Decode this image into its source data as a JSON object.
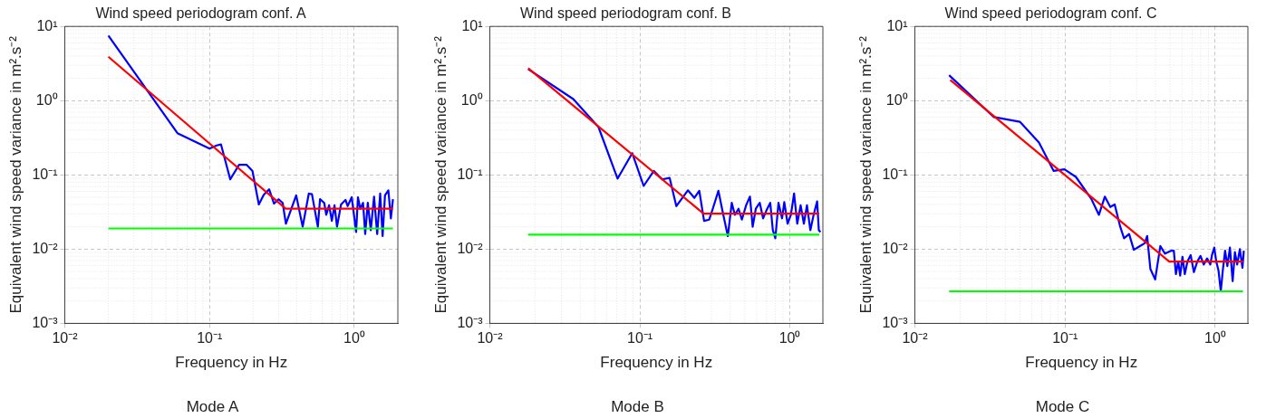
{
  "chart_data": [
    {
      "type": "line",
      "title": "Wind speed periodogram conf. A",
      "xlabel": "Frequency in Hz",
      "ylabel": "Equivalent wind speed variance in m².s⁻²",
      "annotations": [
        "Mode A"
      ],
      "log": "xy",
      "grid": true,
      "marker": "none",
      "xlim": [
        0.01,
        2
      ],
      "ylim": [
        0.001,
        10
      ],
      "xticks": [
        {
          "value": 0.01,
          "label": "10⁻²"
        },
        {
          "value": 0.1,
          "label": "10⁻¹"
        },
        {
          "value": 1,
          "label": "10⁰"
        }
      ],
      "yticks": [
        {
          "value": 0.001,
          "label": "10⁻³"
        },
        {
          "value": 0.01,
          "label": "10⁻²"
        },
        {
          "value": 0.1,
          "label": "10⁻¹"
        },
        {
          "value": 1,
          "label": "10⁰"
        },
        {
          "value": 10,
          "label": "10¹"
        }
      ],
      "series": [
        {
          "color": "#0000ff",
          "x": [
            0.02,
            0.06,
            0.1,
            0.112,
            0.12,
            0.139,
            0.16,
            0.18,
            0.198,
            0.219,
            0.237,
            0.258,
            0.279,
            0.3,
            0.32,
            0.337,
            0.397,
            0.44,
            0.485,
            0.51,
            0.56,
            0.58,
            0.62,
            0.64,
            0.67,
            0.7,
            0.73,
            0.76,
            0.81,
            0.87,
            0.9,
            0.96,
            1.03,
            1.06,
            1.1,
            1.15,
            1.19,
            1.24,
            1.3,
            1.37,
            1.44,
            1.51,
            1.57,
            1.63,
            1.72,
            1.79,
            1.85
          ],
          "values": [
            7.5,
            0.365,
            0.226,
            0.249,
            0.257,
            0.087,
            0.137,
            0.137,
            0.113,
            0.04,
            0.054,
            0.064,
            0.041,
            0.047,
            0.042,
            0.022,
            0.053,
            0.02,
            0.056,
            0.055,
            0.02,
            0.047,
            0.042,
            0.029,
            0.039,
            0.024,
            0.039,
            0.02,
            0.04,
            0.046,
            0.038,
            0.05,
            0.017,
            0.05,
            0.035,
            0.042,
            0.016,
            0.042,
            0.018,
            0.051,
            0.016,
            0.056,
            0.015,
            0.053,
            0.062,
            0.026,
            0.047
          ]
        },
        {
          "color": "#ff0000",
          "x": [
            0.02,
            0.336,
            1.85
          ],
          "values": [
            3.9,
            0.035,
            0.035
          ]
        },
        {
          "color": "#00ff00",
          "x": [
            0.02,
            1.85
          ],
          "values": [
            0.019,
            0.019
          ]
        }
      ]
    },
    {
      "type": "line",
      "title": "Wind speed periodogram conf. B",
      "xlabel": "Frequency in Hz",
      "ylabel": "Equivalent wind speed variance in m².s⁻²",
      "annotations": [
        "Mode B"
      ],
      "log": "xy",
      "grid": true,
      "marker": "none",
      "xlim": [
        0.01,
        1.66
      ],
      "ylim": [
        0.001,
        10
      ],
      "xticks": [
        {
          "value": 0.01,
          "label": "10⁻²"
        },
        {
          "value": 0.1,
          "label": "10⁻¹"
        },
        {
          "value": 1,
          "label": "10⁰"
        }
      ],
      "yticks": [
        {
          "value": 0.001,
          "label": "10⁻³"
        },
        {
          "value": 0.01,
          "label": "10⁻²"
        },
        {
          "value": 0.1,
          "label": "10⁻¹"
        },
        {
          "value": 1,
          "label": "10⁰"
        },
        {
          "value": 10,
          "label": "10¹"
        }
      ],
      "series": [
        {
          "color": "#0000ff",
          "x": [
            0.018,
            0.036,
            0.053,
            0.071,
            0.089,
            0.106,
            0.124,
            0.141,
            0.158,
            0.175,
            0.209,
            0.231,
            0.249,
            0.268,
            0.29,
            0.305,
            0.334,
            0.36,
            0.386,
            0.41,
            0.43,
            0.455,
            0.479,
            0.511,
            0.542,
            0.565,
            0.593,
            0.63,
            0.663,
            0.697,
            0.74,
            0.77,
            0.8,
            0.84,
            0.887,
            0.918,
            0.966,
            1.016,
            1.067,
            1.12,
            1.18,
            1.24,
            1.3,
            1.37,
            1.44,
            1.52,
            1.56,
            1.6
          ],
          "values": [
            2.66,
            1.05,
            0.44,
            0.089,
            0.196,
            0.071,
            0.113,
            0.087,
            0.091,
            0.038,
            0.062,
            0.049,
            0.061,
            0.024,
            0.025,
            0.034,
            0.061,
            0.029,
            0.015,
            0.042,
            0.029,
            0.035,
            0.025,
            0.039,
            0.051,
            0.02,
            0.035,
            0.042,
            0.026,
            0.033,
            0.042,
            0.018,
            0.014,
            0.042,
            0.026,
            0.043,
            0.022,
            0.029,
            0.056,
            0.022,
            0.039,
            0.022,
            0.039,
            0.018,
            0.029,
            0.044,
            0.018,
            0.017
          ]
        },
        {
          "color": "#ff0000",
          "x": [
            0.018,
            0.266,
            1.57
          ],
          "values": [
            2.74,
            0.03,
            0.03
          ]
        },
        {
          "color": "#00ff00",
          "x": [
            0.018,
            1.57
          ],
          "values": [
            0.0157,
            0.0157
          ]
        }
      ]
    },
    {
      "type": "line",
      "title": "Wind speed periodogram conf. C",
      "xlabel": "Frequency in Hz",
      "ylabel": "Equivalent wind speed variance in m².s⁻²",
      "annotations": [
        "Mode C"
      ],
      "log": "xy",
      "grid": true,
      "marker": "none",
      "xlim": [
        0.01,
        1.65
      ],
      "ylim": [
        0.001,
        10
      ],
      "xticks": [
        {
          "value": 0.01,
          "label": "10⁻²"
        },
        {
          "value": 0.1,
          "label": "10⁻¹"
        },
        {
          "value": 1,
          "label": "10⁰"
        }
      ],
      "yticks": [
        {
          "value": 0.001,
          "label": "10⁻³"
        },
        {
          "value": 0.01,
          "label": "10⁻²"
        },
        {
          "value": 0.1,
          "label": "10⁻¹"
        },
        {
          "value": 1,
          "label": "10⁰"
        },
        {
          "value": 10,
          "label": "10¹"
        }
      ],
      "series": [
        {
          "color": "#0000ff",
          "x": [
            0.0169,
            0.0336,
            0.05,
            0.067,
            0.084,
            0.099,
            0.118,
            0.15,
            0.168,
            0.184,
            0.2,
            0.214,
            0.233,
            0.247,
            0.267,
            0.287,
            0.315,
            0.339,
            0.352,
            0.37,
            0.398,
            0.431,
            0.463,
            0.507,
            0.53,
            0.547,
            0.567,
            0.584,
            0.605,
            0.627,
            0.653,
            0.686,
            0.721,
            0.759,
            0.798,
            0.838,
            0.883,
            0.927,
            0.951,
            0.985,
            1.016,
            1.052,
            1.089,
            1.122,
            1.163,
            1.204,
            1.253,
            1.306,
            1.352,
            1.4,
            1.458,
            1.518,
            1.549
          ],
          "values": [
            2.2,
            0.6,
            0.52,
            0.274,
            0.113,
            0.119,
            0.094,
            0.047,
            0.029,
            0.051,
            0.037,
            0.04,
            0.02,
            0.014,
            0.016,
            0.0098,
            0.011,
            0.012,
            0.015,
            0.0054,
            0.0039,
            0.011,
            0.0087,
            0.0095,
            0.0095,
            0.0046,
            0.0068,
            0.0044,
            0.0079,
            0.0046,
            0.0068,
            0.0083,
            0.0049,
            0.0068,
            0.0081,
            0.0062,
            0.0075,
            0.0062,
            0.0083,
            0.0105,
            0.0068,
            0.0051,
            0.0027,
            0.0051,
            0.0095,
            0.0059,
            0.0105,
            0.0037,
            0.0091,
            0.0062,
            0.01,
            0.0056,
            0.0095
          ]
        },
        {
          "color": "#ff0000",
          "x": [
            0.0172,
            0.494,
            1.53
          ],
          "values": [
            1.9,
            0.0068,
            0.0068
          ]
        },
        {
          "color": "#00ff00",
          "x": [
            0.0169,
            1.53
          ],
          "values": [
            0.0027,
            0.0027
          ]
        }
      ]
    }
  ]
}
